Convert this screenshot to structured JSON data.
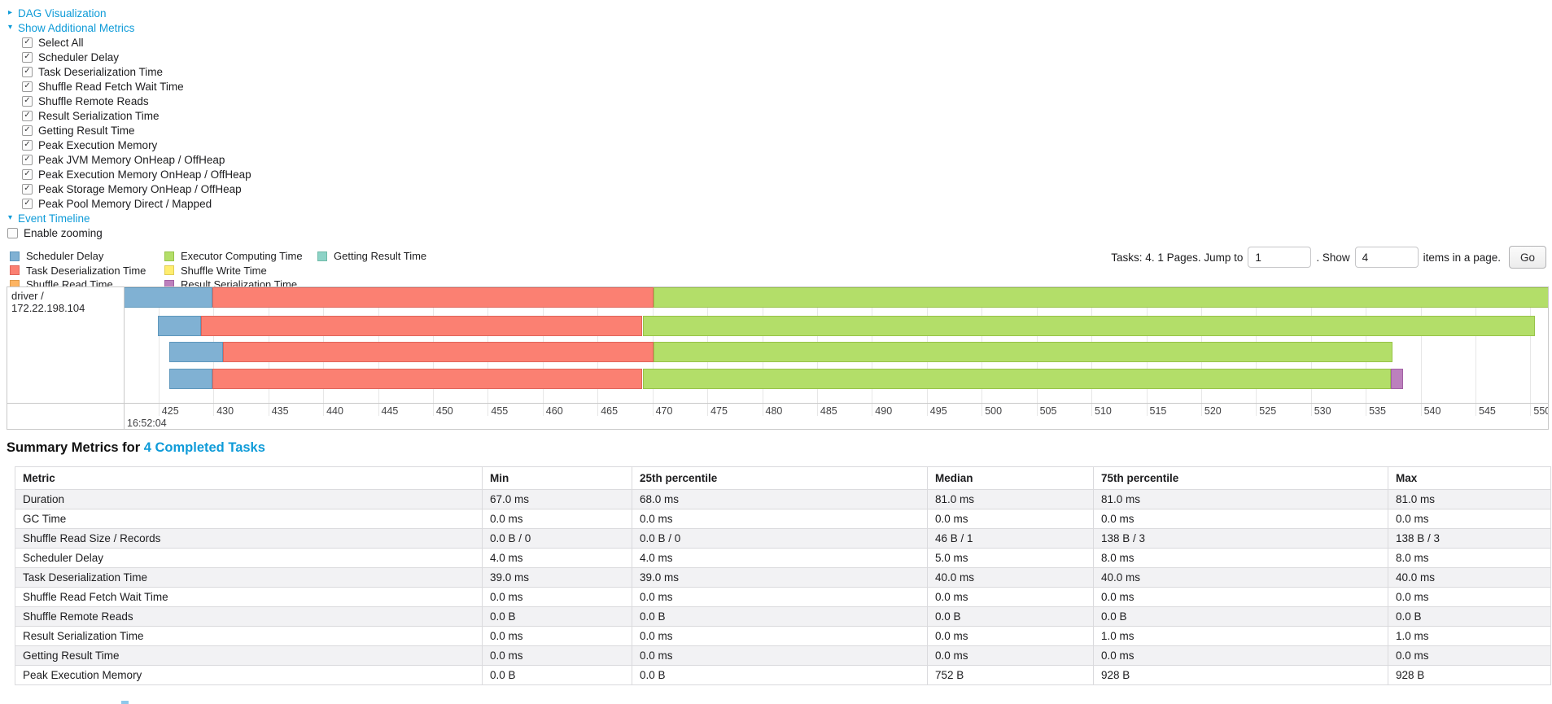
{
  "controls": {
    "dag": {
      "arrow": "▸",
      "label": "DAG Visualization"
    },
    "additional_metrics": {
      "arrow": "▾",
      "label": "Show Additional Metrics"
    },
    "metric_checkboxes": [
      {
        "label": "Select All",
        "checked": true
      },
      {
        "label": "Scheduler Delay",
        "checked": true
      },
      {
        "label": "Task Deserialization Time",
        "checked": true
      },
      {
        "label": "Shuffle Read Fetch Wait Time",
        "checked": true
      },
      {
        "label": "Shuffle Remote Reads",
        "checked": true
      },
      {
        "label": "Result Serialization Time",
        "checked": true
      },
      {
        "label": "Getting Result Time",
        "checked": true
      },
      {
        "label": "Peak Execution Memory",
        "checked": true
      },
      {
        "label": "Peak JVM Memory OnHeap / OffHeap",
        "checked": true
      },
      {
        "label": "Peak Execution Memory OnHeap / OffHeap",
        "checked": true
      },
      {
        "label": "Peak Storage Memory OnHeap / OffHeap",
        "checked": true
      },
      {
        "label": "Peak Pool Memory Direct / Mapped",
        "checked": true
      }
    ],
    "event_timeline": {
      "arrow": "▾",
      "label": "Event Timeline"
    },
    "enable_zooming": {
      "label": "Enable zooming",
      "checked": false
    }
  },
  "legend": {
    "items": [
      {
        "key": "scheduler_delay",
        "label": "Scheduler Delay",
        "color": "#80B1D3",
        "border": "#5E97BC"
      },
      {
        "key": "task_deserialization",
        "label": "Task Deserialization Time",
        "color": "#FB8072",
        "border": "#E0655A"
      },
      {
        "key": "shuffle_read",
        "label": "Shuffle Read Time",
        "color": "#FDB462",
        "border": "#E09A49"
      },
      {
        "key": "executor_computing",
        "label": "Executor Computing Time",
        "color": "#B3DE69",
        "border": "#97C348"
      },
      {
        "key": "shuffle_write",
        "label": "Shuffle Write Time",
        "color": "#FFED6F",
        "border": "#E0CE55"
      },
      {
        "key": "result_serialization",
        "label": "Result Serialization Time",
        "color": "#BC80BD",
        "border": "#A261A4"
      },
      {
        "key": "getting_result",
        "label": "Getting Result Time",
        "color": "#8DD3C7",
        "border": "#70BBA8"
      }
    ]
  },
  "pagination": {
    "tasks_text": "Tasks: 4. 1 Pages. Jump to",
    "jump_value": "1",
    "mid_text": ". Show",
    "show_value": "4",
    "suffix_text": "items in a page.",
    "go_label": "Go"
  },
  "chart_data": {
    "type": "timeline",
    "group_label": "driver / 172.22.198.104",
    "axis": {
      "unit": "milliseconds within second 16:52:04",
      "start_label": "16:52:04",
      "min": 421.9,
      "max": 551.6,
      "tick_start": 425,
      "tick_end": 550,
      "tick_step": 5
    },
    "tasks": [
      {
        "segments": [
          {
            "type": "scheduler_delay",
            "from": 420.4,
            "to": 429.9
          },
          {
            "type": "task_deserialization",
            "from": 429.9,
            "to": 470.1
          },
          {
            "type": "executor_computing",
            "from": 470.1,
            "to": 553.0
          }
        ]
      },
      {
        "segments": [
          {
            "type": "scheduler_delay",
            "from": 424.9,
            "to": 428.9
          },
          {
            "type": "task_deserialization",
            "from": 428.9,
            "to": 469.1
          },
          {
            "type": "executor_computing",
            "from": 469.1,
            "to": 550.4
          }
        ]
      },
      {
        "segments": [
          {
            "type": "scheduler_delay",
            "from": 426.0,
            "to": 430.9
          },
          {
            "type": "task_deserialization",
            "from": 430.9,
            "to": 470.1
          },
          {
            "type": "executor_computing",
            "from": 470.1,
            "to": 537.4
          }
        ]
      },
      {
        "segments": [
          {
            "type": "scheduler_delay",
            "from": 426.0,
            "to": 429.9
          },
          {
            "type": "task_deserialization",
            "from": 429.9,
            "to": 469.1
          },
          {
            "type": "executor_computing",
            "from": 469.1,
            "to": 537.3
          },
          {
            "type": "result_serialization",
            "from": 537.3,
            "to": 538.4
          }
        ]
      }
    ]
  },
  "summary": {
    "title_prefix": "Summary Metrics for ",
    "title_link": "4 Completed Tasks",
    "columns": [
      "Metric",
      "Min",
      "25th percentile",
      "Median",
      "75th percentile",
      "Max"
    ],
    "rows": [
      [
        "Duration",
        "67.0 ms",
        "68.0 ms",
        "81.0 ms",
        "81.0 ms",
        "81.0 ms"
      ],
      [
        "GC Time",
        "0.0 ms",
        "0.0 ms",
        "0.0 ms",
        "0.0 ms",
        "0.0 ms"
      ],
      [
        "Shuffle Read Size / Records",
        "0.0 B / 0",
        "0.0 B / 0",
        "46 B / 1",
        "138 B / 3",
        "138 B / 3"
      ],
      [
        "Scheduler Delay",
        "4.0 ms",
        "4.0 ms",
        "5.0 ms",
        "8.0 ms",
        "8.0 ms"
      ],
      [
        "Task Deserialization Time",
        "39.0 ms",
        "39.0 ms",
        "40.0 ms",
        "40.0 ms",
        "40.0 ms"
      ],
      [
        "Shuffle Read Fetch Wait Time",
        "0.0 ms",
        "0.0 ms",
        "0.0 ms",
        "0.0 ms",
        "0.0 ms"
      ],
      [
        "Shuffle Remote Reads",
        "0.0 B",
        "0.0 B",
        "0.0 B",
        "0.0 B",
        "0.0 B"
      ],
      [
        "Result Serialization Time",
        "0.0 ms",
        "0.0 ms",
        "0.0 ms",
        "1.0 ms",
        "1.0 ms"
      ],
      [
        "Getting Result Time",
        "0.0 ms",
        "0.0 ms",
        "0.0 ms",
        "0.0 ms",
        "0.0 ms"
      ],
      [
        "Peak Execution Memory",
        "0.0 B",
        "0.0 B",
        "752 B",
        "928 B",
        "928 B"
      ]
    ]
  },
  "colors": {
    "link": "#0E9BD8"
  }
}
